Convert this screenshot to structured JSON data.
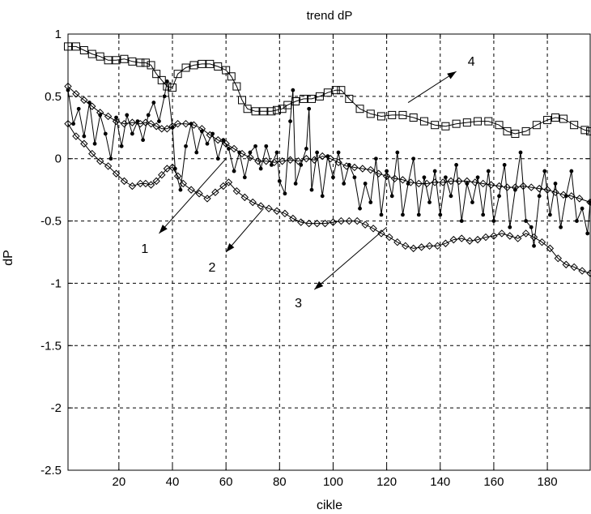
{
  "chart_data": {
    "type": "line",
    "title": "trend dP",
    "xlabel": "cikle",
    "ylabel": "dP",
    "xlim": [
      1,
      196
    ],
    "ylim": [
      -2.5,
      1
    ],
    "grid": true,
    "x_ticks": [
      20,
      40,
      60,
      80,
      100,
      120,
      140,
      160,
      180
    ],
    "y_ticks": [
      1,
      0.5,
      0,
      -0.5,
      -1,
      -1.5,
      -2,
      -2.5
    ],
    "x_tick_labels": [
      "20",
      "40",
      "60",
      "80",
      "100",
      "120",
      "140",
      "160",
      "180"
    ],
    "y_tick_labels": [
      "1",
      "0.5",
      "0",
      "-0.5",
      "-1",
      "-1.5",
      "-2",
      "-2.5"
    ],
    "annotations": [
      {
        "text": "1",
        "curve": 1,
        "from": [
          60,
          0.0
        ],
        "to": [
          35,
          -0.6
        ]
      },
      {
        "text": "2",
        "curve": 2,
        "from": [
          74,
          -0.4
        ],
        "to": [
          60,
          -0.75
        ]
      },
      {
        "text": "3",
        "curve": 3,
        "from": [
          120,
          -0.55
        ],
        "to": [
          93,
          -1.05
        ]
      },
      {
        "text": "4",
        "curve": 4,
        "from": [
          128,
          0.45
        ],
        "to": [
          146,
          0.7
        ]
      }
    ],
    "series": [
      {
        "marker": "square",
        "color": "#000000",
        "points": [
          [
            1,
            0.9
          ],
          [
            4,
            0.9
          ],
          [
            7,
            0.87
          ],
          [
            10,
            0.84
          ],
          [
            13,
            0.82
          ],
          [
            16,
            0.79
          ],
          [
            19,
            0.79
          ],
          [
            22,
            0.8
          ],
          [
            25,
            0.78
          ],
          [
            28,
            0.77
          ],
          [
            30,
            0.77
          ],
          [
            32,
            0.75
          ],
          [
            34,
            0.68
          ],
          [
            36,
            0.63
          ],
          [
            38,
            0.58
          ],
          [
            40,
            0.57
          ],
          [
            42,
            0.68
          ],
          [
            45,
            0.73
          ],
          [
            48,
            0.75
          ],
          [
            51,
            0.76
          ],
          [
            54,
            0.76
          ],
          [
            57,
            0.74
          ],
          [
            60,
            0.71
          ],
          [
            62,
            0.66
          ],
          [
            64,
            0.58
          ],
          [
            66,
            0.47
          ],
          [
            68,
            0.4
          ],
          [
            71,
            0.38
          ],
          [
            74,
            0.38
          ],
          [
            77,
            0.38
          ],
          [
            79,
            0.39
          ],
          [
            81,
            0.4
          ],
          [
            83,
            0.43
          ],
          [
            86,
            0.46
          ],
          [
            89,
            0.48
          ],
          [
            92,
            0.48
          ],
          [
            95,
            0.5
          ],
          [
            98,
            0.53
          ],
          [
            101,
            0.55
          ],
          [
            103,
            0.55
          ],
          [
            106,
            0.48
          ],
          [
            110,
            0.4
          ],
          [
            114,
            0.36
          ],
          [
            118,
            0.34
          ],
          [
            122,
            0.35
          ],
          [
            126,
            0.35
          ],
          [
            130,
            0.33
          ],
          [
            134,
            0.3
          ],
          [
            138,
            0.27
          ],
          [
            142,
            0.26
          ],
          [
            146,
            0.28
          ],
          [
            150,
            0.29
          ],
          [
            154,
            0.3
          ],
          [
            158,
            0.3
          ],
          [
            162,
            0.27
          ],
          [
            165,
            0.22
          ],
          [
            168,
            0.2
          ],
          [
            172,
            0.22
          ],
          [
            176,
            0.27
          ],
          [
            180,
            0.31
          ],
          [
            183,
            0.33
          ],
          [
            186,
            0.32
          ],
          [
            190,
            0.27
          ],
          [
            194,
            0.23
          ],
          [
            196,
            0.22
          ]
        ]
      },
      {
        "marker": "dot",
        "color": "#000000",
        "points": [
          [
            1,
            0.55
          ],
          [
            3,
            0.28
          ],
          [
            5,
            0.4
          ],
          [
            7,
            0.18
          ],
          [
            9,
            0.45
          ],
          [
            11,
            0.12
          ],
          [
            13,
            0.35
          ],
          [
            15,
            0.2
          ],
          [
            17,
            0.0
          ],
          [
            19,
            0.33
          ],
          [
            21,
            0.1
          ],
          [
            23,
            0.35
          ],
          [
            25,
            0.2
          ],
          [
            27,
            0.3
          ],
          [
            29,
            0.15
          ],
          [
            31,
            0.35
          ],
          [
            33,
            0.45
          ],
          [
            35,
            0.3
          ],
          [
            37,
            0.5
          ],
          [
            38,
            0.62
          ],
          [
            40,
            0.25
          ],
          [
            41,
            -0.08
          ],
          [
            43,
            -0.25
          ],
          [
            45,
            0.1
          ],
          [
            47,
            0.28
          ],
          [
            49,
            0.05
          ],
          [
            51,
            0.22
          ],
          [
            53,
            0.12
          ],
          [
            55,
            0.2
          ],
          [
            57,
            0.0
          ],
          [
            59,
            0.15
          ],
          [
            61,
            0.08
          ],
          [
            63,
            -0.1
          ],
          [
            65,
            0.05
          ],
          [
            67,
            -0.15
          ],
          [
            69,
            0.05
          ],
          [
            71,
            0.1
          ],
          [
            73,
            -0.08
          ],
          [
            75,
            0.1
          ],
          [
            77,
            -0.05
          ],
          [
            79,
            0.05
          ],
          [
            80,
            -0.18
          ],
          [
            82,
            -0.28
          ],
          [
            84,
            0.3
          ],
          [
            85,
            0.55
          ],
          [
            86,
            -0.2
          ],
          [
            88,
            -0.05
          ],
          [
            90,
            0.08
          ],
          [
            91,
            0.4
          ],
          [
            92,
            -0.25
          ],
          [
            94,
            0.05
          ],
          [
            96,
            -0.3
          ],
          [
            98,
            0.02
          ],
          [
            100,
            -0.15
          ],
          [
            102,
            0.05
          ],
          [
            104,
            -0.2
          ],
          [
            106,
            -0.05
          ],
          [
            108,
            -0.15
          ],
          [
            110,
            -0.4
          ],
          [
            112,
            -0.2
          ],
          [
            114,
            -0.35
          ],
          [
            116,
            0.0
          ],
          [
            118,
            -0.45
          ],
          [
            120,
            -0.1
          ],
          [
            122,
            -0.3
          ],
          [
            124,
            0.05
          ],
          [
            126,
            -0.45
          ],
          [
            128,
            -0.2
          ],
          [
            130,
            0.0
          ],
          [
            132,
            -0.45
          ],
          [
            134,
            -0.15
          ],
          [
            136,
            -0.35
          ],
          [
            138,
            -0.1
          ],
          [
            140,
            -0.45
          ],
          [
            142,
            -0.15
          ],
          [
            144,
            -0.3
          ],
          [
            146,
            -0.05
          ],
          [
            148,
            -0.5
          ],
          [
            150,
            -0.2
          ],
          [
            152,
            -0.35
          ],
          [
            154,
            -0.15
          ],
          [
            156,
            -0.45
          ],
          [
            158,
            -0.1
          ],
          [
            160,
            -0.5
          ],
          [
            162,
            -0.3
          ],
          [
            164,
            -0.05
          ],
          [
            166,
            -0.55
          ],
          [
            168,
            -0.25
          ],
          [
            170,
            0.05
          ],
          [
            172,
            -0.5
          ],
          [
            174,
            -0.55
          ],
          [
            175,
            -0.7
          ],
          [
            177,
            -0.3
          ],
          [
            179,
            -0.1
          ],
          [
            181,
            -0.45
          ],
          [
            183,
            -0.2
          ],
          [
            185,
            -0.55
          ],
          [
            187,
            -0.3
          ],
          [
            189,
            -0.1
          ],
          [
            191,
            -0.5
          ],
          [
            193,
            -0.4
          ],
          [
            195,
            -0.6
          ],
          [
            196,
            -0.35
          ]
        ]
      },
      {
        "marker": "diamond",
        "color": "#000000",
        "points": [
          [
            1,
            0.58
          ],
          [
            4,
            0.52
          ],
          [
            7,
            0.47
          ],
          [
            10,
            0.42
          ],
          [
            13,
            0.37
          ],
          [
            16,
            0.34
          ],
          [
            19,
            0.3
          ],
          [
            22,
            0.28
          ],
          [
            25,
            0.29
          ],
          [
            28,
            0.28
          ],
          [
            30,
            0.29
          ],
          [
            32,
            0.28
          ],
          [
            34,
            0.26
          ],
          [
            36,
            0.24
          ],
          [
            38,
            0.24
          ],
          [
            40,
            0.26
          ],
          [
            42,
            0.28
          ],
          [
            45,
            0.28
          ],
          [
            48,
            0.27
          ],
          [
            51,
            0.24
          ],
          [
            54,
            0.19
          ],
          [
            57,
            0.15
          ],
          [
            60,
            0.12
          ],
          [
            63,
            0.08
          ],
          [
            66,
            0.04
          ],
          [
            69,
            0.01
          ],
          [
            72,
            -0.02
          ],
          [
            75,
            -0.02
          ],
          [
            78,
            -0.03
          ],
          [
            81,
            -0.02
          ],
          [
            84,
            -0.01
          ],
          [
            87,
            -0.02
          ],
          [
            90,
            0.0
          ],
          [
            93,
            -0.01
          ],
          [
            96,
            0.02
          ],
          [
            99,
            0.0
          ],
          [
            102,
            -0.03
          ],
          [
            105,
            -0.06
          ],
          [
            108,
            -0.07
          ],
          [
            111,
            -0.08
          ],
          [
            114,
            -0.09
          ],
          [
            117,
            -0.12
          ],
          [
            120,
            -0.14
          ],
          [
            123,
            -0.16
          ],
          [
            126,
            -0.17
          ],
          [
            129,
            -0.19
          ],
          [
            132,
            -0.2
          ],
          [
            135,
            -0.2
          ],
          [
            138,
            -0.19
          ],
          [
            141,
            -0.19
          ],
          [
            144,
            -0.18
          ],
          [
            147,
            -0.18
          ],
          [
            150,
            -0.18
          ],
          [
            153,
            -0.19
          ],
          [
            156,
            -0.2
          ],
          [
            159,
            -0.21
          ],
          [
            162,
            -0.22
          ],
          [
            165,
            -0.23
          ],
          [
            168,
            -0.23
          ],
          [
            171,
            -0.22
          ],
          [
            174,
            -0.23
          ],
          [
            177,
            -0.24
          ],
          [
            180,
            -0.25
          ],
          [
            183,
            -0.27
          ],
          [
            186,
            -0.29
          ],
          [
            189,
            -0.3
          ],
          [
            192,
            -0.32
          ],
          [
            196,
            -0.35
          ]
        ]
      },
      {
        "marker": "diamond",
        "color": "#000000",
        "points": [
          [
            1,
            0.28
          ],
          [
            4,
            0.18
          ],
          [
            7,
            0.12
          ],
          [
            10,
            0.04
          ],
          [
            13,
            -0.02
          ],
          [
            16,
            -0.06
          ],
          [
            19,
            -0.12
          ],
          [
            22,
            -0.18
          ],
          [
            25,
            -0.22
          ],
          [
            28,
            -0.2
          ],
          [
            30,
            -0.2
          ],
          [
            32,
            -0.21
          ],
          [
            34,
            -0.18
          ],
          [
            36,
            -0.13
          ],
          [
            38,
            -0.08
          ],
          [
            40,
            -0.07
          ],
          [
            42,
            -0.14
          ],
          [
            44,
            -0.2
          ],
          [
            47,
            -0.25
          ],
          [
            50,
            -0.28
          ],
          [
            53,
            -0.32
          ],
          [
            56,
            -0.27
          ],
          [
            59,
            -0.22
          ],
          [
            61,
            -0.19
          ],
          [
            64,
            -0.26
          ],
          [
            67,
            -0.31
          ],
          [
            70,
            -0.35
          ],
          [
            73,
            -0.38
          ],
          [
            76,
            -0.4
          ],
          [
            79,
            -0.42
          ],
          [
            82,
            -0.44
          ],
          [
            85,
            -0.48
          ],
          [
            88,
            -0.51
          ],
          [
            91,
            -0.52
          ],
          [
            94,
            -0.52
          ],
          [
            97,
            -0.52
          ],
          [
            100,
            -0.51
          ],
          [
            103,
            -0.5
          ],
          [
            106,
            -0.5
          ],
          [
            109,
            -0.5
          ],
          [
            112,
            -0.53
          ],
          [
            115,
            -0.56
          ],
          [
            118,
            -0.6
          ],
          [
            121,
            -0.63
          ],
          [
            124,
            -0.67
          ],
          [
            127,
            -0.7
          ],
          [
            130,
            -0.72
          ],
          [
            133,
            -0.71
          ],
          [
            136,
            -0.7
          ],
          [
            139,
            -0.7
          ],
          [
            142,
            -0.68
          ],
          [
            145,
            -0.65
          ],
          [
            148,
            -0.64
          ],
          [
            151,
            -0.66
          ],
          [
            154,
            -0.65
          ],
          [
            157,
            -0.63
          ],
          [
            160,
            -0.62
          ],
          [
            163,
            -0.6
          ],
          [
            166,
            -0.62
          ],
          [
            169,
            -0.64
          ],
          [
            172,
            -0.6
          ],
          [
            175,
            -0.63
          ],
          [
            178,
            -0.67
          ],
          [
            181,
            -0.72
          ],
          [
            184,
            -0.8
          ],
          [
            187,
            -0.85
          ],
          [
            190,
            -0.87
          ],
          [
            193,
            -0.9
          ],
          [
            196,
            -0.92
          ]
        ]
      }
    ]
  }
}
